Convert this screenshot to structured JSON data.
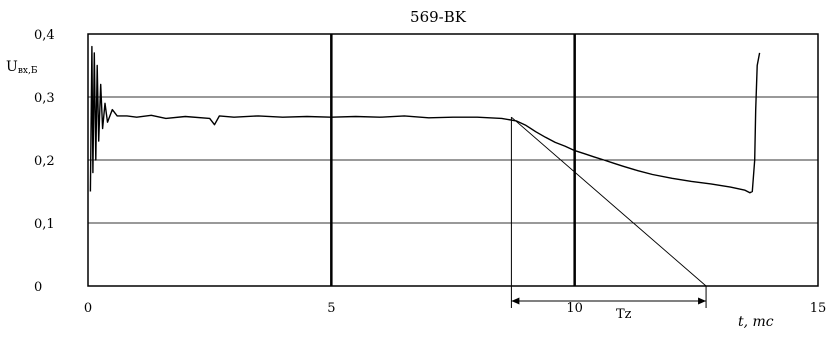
{
  "chart_data": {
    "type": "line",
    "title": "569-BK",
    "ylabel": "U",
    "ylabel_sub": "вх,Б",
    "xlabel": "t, mc",
    "xlim": [
      0,
      15
    ],
    "ylim": [
      0,
      0.4
    ],
    "x_ticks": [
      {
        "value": 0,
        "label": "0"
      },
      {
        "value": 5,
        "label": "5"
      },
      {
        "value": 10,
        "label": "10"
      },
      {
        "value": 15,
        "label": "15"
      }
    ],
    "y_ticks": [
      {
        "value": 0,
        "label": "0"
      },
      {
        "value": 0.1,
        "label": "0,1"
      },
      {
        "value": 0.2,
        "label": "0,2"
      },
      {
        "value": 0.3,
        "label": "0,3"
      },
      {
        "value": 0.4,
        "label": "0,4"
      }
    ],
    "grid": "horizontal",
    "vertical_markers": [
      5,
      10
    ],
    "series": [
      {
        "x": [
          0.05,
          0.08,
          0.1,
          0.13,
          0.16,
          0.19,
          0.22,
          0.26,
          0.3,
          0.35,
          0.4,
          0.5,
          0.6,
          0.8,
          1.0,
          1.3,
          1.6,
          2.0,
          2.5,
          2.6,
          2.7,
          3.0,
          3.5,
          4.0,
          4.5,
          5.0,
          5.5,
          6.0,
          6.5,
          7.0,
          7.5,
          8.0,
          8.5,
          8.8,
          9.0,
          9.2,
          9.4,
          9.6,
          9.8,
          10.0,
          10.2,
          10.4,
          10.6,
          10.8,
          11.0,
          11.3,
          11.6,
          12.0,
          12.4,
          12.8,
          13.2,
          13.5,
          13.6,
          13.65,
          13.7,
          13.72,
          13.75,
          13.8
        ],
        "y": [
          0.15,
          0.38,
          0.18,
          0.37,
          0.2,
          0.35,
          0.23,
          0.32,
          0.25,
          0.29,
          0.26,
          0.28,
          0.27,
          0.27,
          0.268,
          0.271,
          0.266,
          0.269,
          0.266,
          0.256,
          0.27,
          0.268,
          0.27,
          0.268,
          0.269,
          0.268,
          0.269,
          0.268,
          0.27,
          0.267,
          0.268,
          0.268,
          0.266,
          0.262,
          0.255,
          0.245,
          0.236,
          0.228,
          0.222,
          0.215,
          0.21,
          0.205,
          0.2,
          0.195,
          0.19,
          0.183,
          0.177,
          0.171,
          0.166,
          0.162,
          0.157,
          0.152,
          0.148,
          0.15,
          0.2,
          0.28,
          0.35,
          0.37
        ]
      }
    ],
    "annotations": [
      {
        "type": "tangent_line",
        "x": [
          8.7,
          12.7
        ],
        "y": [
          0.268,
          0
        ]
      },
      {
        "type": "interval",
        "label": "Tz",
        "x": [
          8.7,
          12.7
        ]
      }
    ]
  }
}
